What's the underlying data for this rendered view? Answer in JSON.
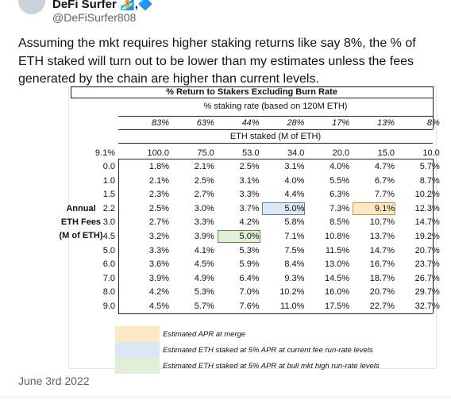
{
  "author": {
    "name": "DeFi Surfer 🏄,🔷",
    "handle": "@DeFiSurfer808"
  },
  "tweet": {
    "text": "Assuming the mkt requires higher staking returns like say 8%, the % of ETH staked will turn out to be lower than my estimates unless the fees generated by the chain are higher than current levels.",
    "date": "June 3rd 2022"
  },
  "table": {
    "title": "% Return to Stakers Excluding Burn Rate",
    "staking_rate_label": "% staking rate (based on 120M ETH)",
    "staking_rates": [
      "83%",
      "63%",
      "44%",
      "28%",
      "17%",
      "13%",
      "8%"
    ],
    "eth_staked_label": "ETH staked (M of ETH)",
    "burn_rate": "9.1%",
    "eth_staked": [
      "100.0",
      "75.0",
      "53.0",
      "34.0",
      "20.0",
      "15.0",
      "10.0"
    ],
    "row_label": [
      "Annual",
      "ETH Fees",
      "(M of ETH)"
    ],
    "rows": [
      {
        "fees": "0.0",
        "cells": [
          "1.8%",
          "2.1%",
          "2.5%",
          "3.1%",
          "4.0%",
          "4.7%",
          "5.7%"
        ]
      },
      {
        "fees": "1.0",
        "cells": [
          "2.1%",
          "2.5%",
          "3.1%",
          "4.0%",
          "5.5%",
          "6.7%",
          "8.7%"
        ]
      },
      {
        "fees": "1.5",
        "cells": [
          "2.3%",
          "2.7%",
          "3.3%",
          "4.4%",
          "6.3%",
          "7.7%",
          "10.2%"
        ]
      },
      {
        "fees": "2.2",
        "cells": [
          "2.5%",
          "3.0%",
          "3.7%",
          "5.0%",
          "7.3%",
          "9.1%",
          "12.3%"
        ]
      },
      {
        "fees": "3.0",
        "cells": [
          "2.7%",
          "3.3%",
          "4.2%",
          "5.8%",
          "8.5%",
          "10.7%",
          "14.7%"
        ]
      },
      {
        "fees": "4.5",
        "cells": [
          "3.2%",
          "3.9%",
          "5.0%",
          "7.1%",
          "10.8%",
          "13.7%",
          "19.2%"
        ]
      },
      {
        "fees": "5.0",
        "cells": [
          "3.3%",
          "4.1%",
          "5.3%",
          "7.5%",
          "11.5%",
          "14.7%",
          "20.7%"
        ]
      },
      {
        "fees": "6.0",
        "cells": [
          "3.6%",
          "4.5%",
          "5.9%",
          "8.4%",
          "13.0%",
          "16.7%",
          "23.7%"
        ]
      },
      {
        "fees": "7.0",
        "cells": [
          "3.9%",
          "4.9%",
          "6.4%",
          "9.3%",
          "14.5%",
          "18.7%",
          "26.7%"
        ]
      },
      {
        "fees": "8.0",
        "cells": [
          "4.2%",
          "5.3%",
          "7.0%",
          "10.2%",
          "16.0%",
          "20.7%",
          "29.7%"
        ]
      },
      {
        "fees": "9.0",
        "cells": [
          "4.5%",
          "5.7%",
          "7.6%",
          "11.0%",
          "17.5%",
          "22.7%",
          "32.7%"
        ]
      }
    ]
  },
  "legend": [
    "Estimated APR at merge",
    "Estimated ETH staked at 5% APR at current fee run-rate levels",
    "Estimated ETH staked at 5% APR at bull mkt high run-rate levels"
  ]
}
